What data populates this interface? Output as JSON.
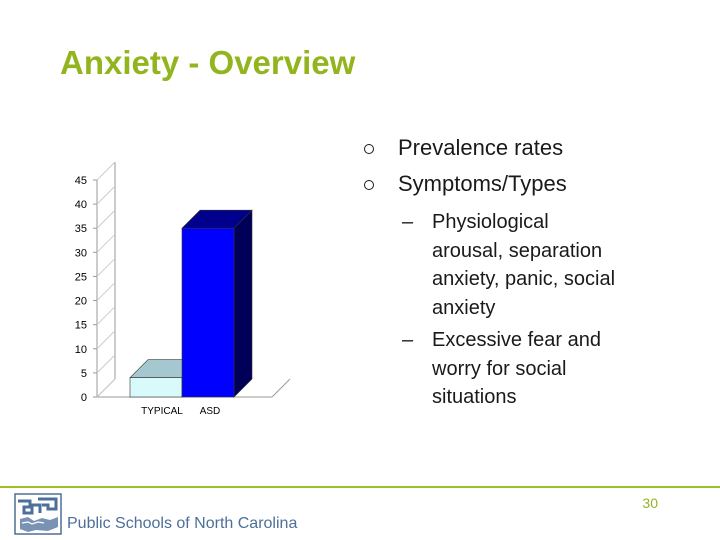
{
  "slide": {
    "title": "Anxiety - Overview",
    "bullets": [
      {
        "text": "Prevalence rates"
      },
      {
        "text": "Symptoms/Types"
      }
    ],
    "sub_bullets": [
      {
        "dash": "–",
        "lines": [
          "Physiological",
          "arousal, separation",
          "anxiety, panic, social",
          "anxiety"
        ]
      },
      {
        "dash": "–",
        "lines": [
          "Excessive fear and",
          "worry for social",
          "situations"
        ]
      }
    ],
    "page_number": "30"
  },
  "footer": {
    "org_name": "Public Schools of North Carolina",
    "logo_icon": "nc-map-logo-icon",
    "accent_color": "#9cc026"
  },
  "chart_data": {
    "type": "bar",
    "title": "",
    "xlabel": "",
    "ylabel": "",
    "categories": [
      "TYPICAL",
      "ASD"
    ],
    "values": [
      4,
      35
    ],
    "ylim": [
      0,
      45
    ],
    "yticks": [
      0,
      5,
      10,
      15,
      20,
      25,
      30,
      35,
      40,
      45
    ],
    "three_d": true,
    "grid": false,
    "legend": "none",
    "colors": {
      "TYPICAL": "#d9fafa",
      "ASD": "#0000ff"
    }
  }
}
